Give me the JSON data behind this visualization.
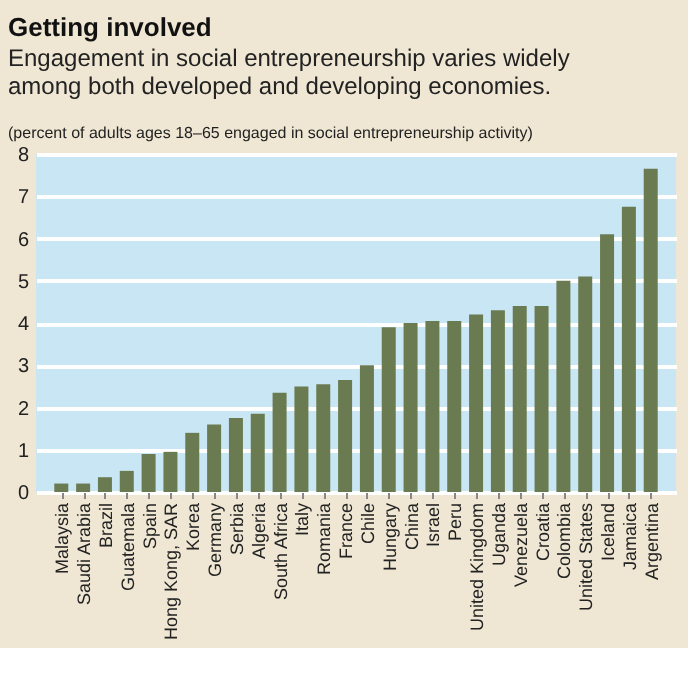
{
  "chart_data": {
    "type": "bar",
    "title": "Getting involved",
    "subtitle": "Engagement in social entrepreneurship varies widely among both developed and developing economies.",
    "annotations": [
      "(percent of adults ages 18–65 engaged in social entrepreneurship activity)"
    ],
    "categories": [
      "Malaysia",
      "Saudi Arabia",
      "Brazil",
      "Guatemala",
      "Spain",
      "Hong Kong, SAR",
      "Korea",
      "Germany",
      "Serbia",
      "Algeria",
      "South Africa",
      "Italy",
      "Romania",
      "France",
      "Chile",
      "Hungary",
      "China",
      "Israel",
      "Peru",
      "United Kingdom",
      "Uganda",
      "Venezuela",
      "Croatia",
      "Colombia",
      "United States",
      "Iceland",
      "Jamaica",
      "Argentina"
    ],
    "values": [
      0.2,
      0.2,
      0.35,
      0.5,
      0.9,
      0.95,
      1.4,
      1.6,
      1.75,
      1.85,
      2.35,
      2.5,
      2.55,
      2.65,
      3.0,
      3.9,
      4.0,
      4.05,
      4.05,
      4.2,
      4.3,
      4.4,
      4.4,
      5.0,
      5.1,
      6.1,
      6.75,
      7.65
    ],
    "color": "#6b7b51",
    "ylim": [
      0,
      8
    ],
    "yticks": [
      0,
      1,
      2,
      3,
      4,
      5,
      6,
      7,
      8
    ],
    "grid": "y"
  }
}
